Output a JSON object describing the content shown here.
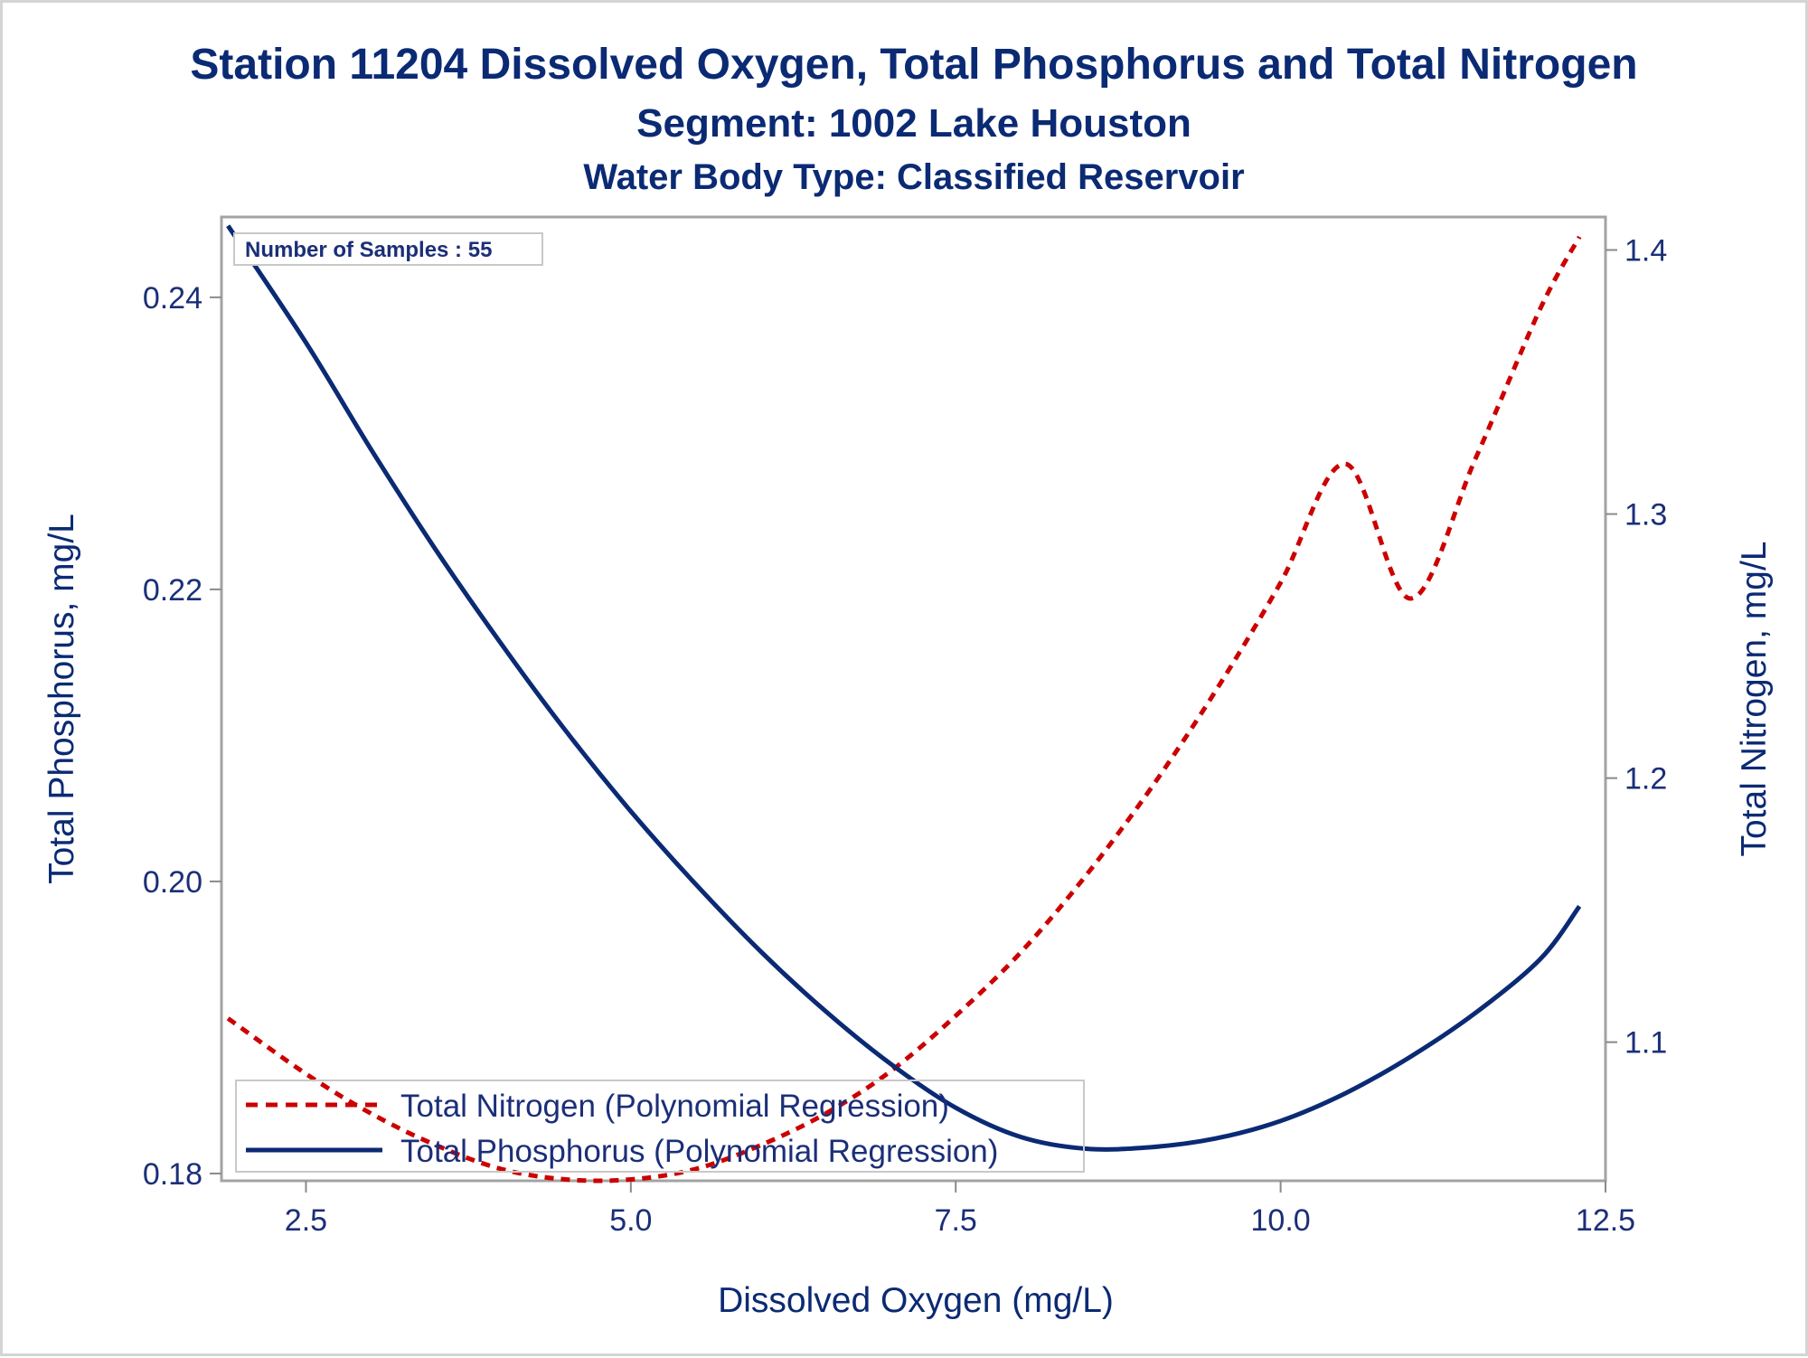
{
  "chart_data": {
    "type": "line",
    "title": "Station 11204  Dissolved Oxygen, Total Phosphorus and Total Nitrogen",
    "subtitle": "Segment: 1002  Lake Houston",
    "subtitle2": "Water Body Type: Classified Reservoir",
    "xlabel": "Dissolved Oxygen (mg/L)",
    "ylabel": "Total Phosphorus, mg/L",
    "y2label": "Total Nitrogen, mg/L",
    "xlim": [
      1.85,
      12.5
    ],
    "ylim": [
      0.1795,
      0.2455
    ],
    "y2lim": [
      1.0475,
      1.4125
    ],
    "xticks": [
      "2.5",
      "5.0",
      "7.5",
      "10.0",
      "12.5"
    ],
    "xtick_values": [
      2.5,
      5.0,
      7.5,
      10.0,
      12.5
    ],
    "yticks": [
      "0.18",
      "0.20",
      "0.22",
      "0.24"
    ],
    "ytick_values": [
      0.18,
      0.2,
      0.22,
      0.24
    ],
    "y2ticks": [
      "1.1",
      "1.2",
      "1.3",
      "1.4"
    ],
    "y2tick_values": [
      1.1,
      1.2,
      1.3,
      1.4
    ],
    "annotation": "Number of Samples : 55",
    "legend_position": "bottom-left",
    "grid": false,
    "series": [
      {
        "name": "Total Nitrogen (Polynomial Regression)",
        "axis": "y2",
        "style": "dashed",
        "color": "#cc0000",
        "x": [
          1.9,
          2.5,
          3.0,
          3.5,
          4.0,
          4.5,
          5.0,
          5.5,
          6.0,
          6.5,
          7.0,
          7.5,
          8.0,
          8.5,
          9.0,
          9.5,
          10.0,
          10.5,
          11.0,
          11.5,
          12.0,
          12.3
        ],
        "values": [
          1.109,
          1.088,
          1.073,
          1.061,
          1.052,
          1.048,
          1.048,
          1.052,
          1.061,
          1.073,
          1.089,
          1.11,
          1.134,
          1.163,
          1.196,
          1.233,
          1.274,
          1.319,
          1.268,
          1.321,
          1.378,
          1.405
        ]
      },
      {
        "name": "Total Phosphorus (Polynomial Regression)",
        "axis": "y",
        "style": "solid",
        "color": "#0b2a74",
        "x": [
          1.9,
          2.5,
          3.0,
          3.5,
          4.0,
          4.5,
          5.0,
          5.5,
          6.0,
          6.5,
          7.0,
          7.5,
          8.0,
          8.5,
          9.0,
          9.5,
          10.0,
          10.5,
          11.0,
          11.5,
          12.0,
          12.3
        ],
        "values": [
          0.2449,
          0.2369,
          0.2296,
          0.2227,
          0.2163,
          0.2103,
          0.2048,
          0.1998,
          0.1952,
          0.1911,
          0.1875,
          0.1845,
          0.1825,
          0.1817,
          0.1818,
          0.1824,
          0.1836,
          0.1855,
          0.188,
          0.191,
          0.1947,
          0.1983
        ]
      }
    ]
  }
}
